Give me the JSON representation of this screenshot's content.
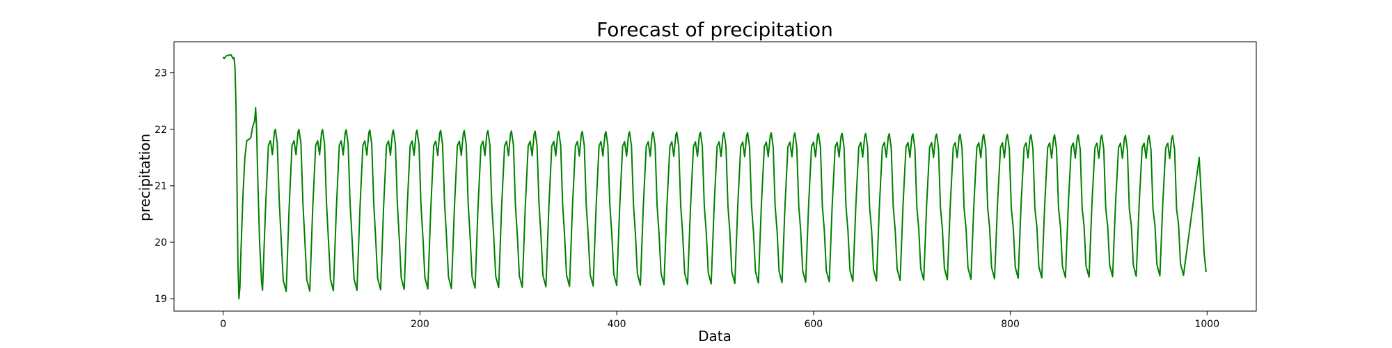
{
  "chart_data": {
    "type": "line",
    "title": "Forecast of precipitation",
    "xlabel": "Data",
    "ylabel": "precipitation",
    "xlim": [
      -50,
      1050
    ],
    "ylim": [
      18.78,
      23.55
    ],
    "xticks": [
      0,
      200,
      400,
      600,
      800,
      1000
    ],
    "yticks": [
      19,
      20,
      21,
      22,
      23
    ],
    "grid": false,
    "legend": "none",
    "series": [
      {
        "color": "#008000",
        "description": "Initial decline from ~23.3 then a damped-to-steady oscillation between ~19.1 and ~22.0 with period ~24 samples over x = 0 to 999",
        "x_start": 0,
        "x_end": 999,
        "head_points": [
          [
            0,
            23.28
          ],
          [
            1,
            23.25
          ],
          [
            3,
            23.3
          ],
          [
            5,
            23.31
          ],
          [
            8,
            23.32
          ],
          [
            10,
            23.25
          ],
          [
            11,
            23.27
          ],
          [
            12,
            23.1
          ],
          [
            13,
            22.4
          ],
          [
            14,
            21.0
          ],
          [
            15,
            19.6
          ],
          [
            16,
            19.0
          ],
          [
            17,
            19.2
          ],
          [
            18,
            19.8
          ],
          [
            20,
            20.8
          ],
          [
            22,
            21.5
          ],
          [
            24,
            21.8
          ],
          [
            26,
            21.82
          ],
          [
            28,
            21.85
          ],
          [
            30,
            22.05
          ],
          [
            32,
            22.15
          ],
          [
            33,
            22.38
          ],
          [
            34,
            22.0
          ],
          [
            35,
            21.2
          ],
          [
            37,
            20.0
          ],
          [
            39,
            19.3
          ],
          [
            40,
            19.15
          ]
        ],
        "cycle": {
          "period": 24,
          "first_min_x": 40,
          "min_start": 19.12,
          "min_end": 19.42,
          "peak1_start": 21.8,
          "peak1_end": 21.75,
          "dip_start": 21.55,
          "dip_end": 21.48,
          "peak2_start": 22.0,
          "peak2_end": 21.88
        },
        "tail_points": [
          [
            992,
            21.5
          ],
          [
            995,
            20.5
          ],
          [
            997,
            19.8
          ],
          [
            999,
            19.47
          ]
        ]
      }
    ]
  }
}
